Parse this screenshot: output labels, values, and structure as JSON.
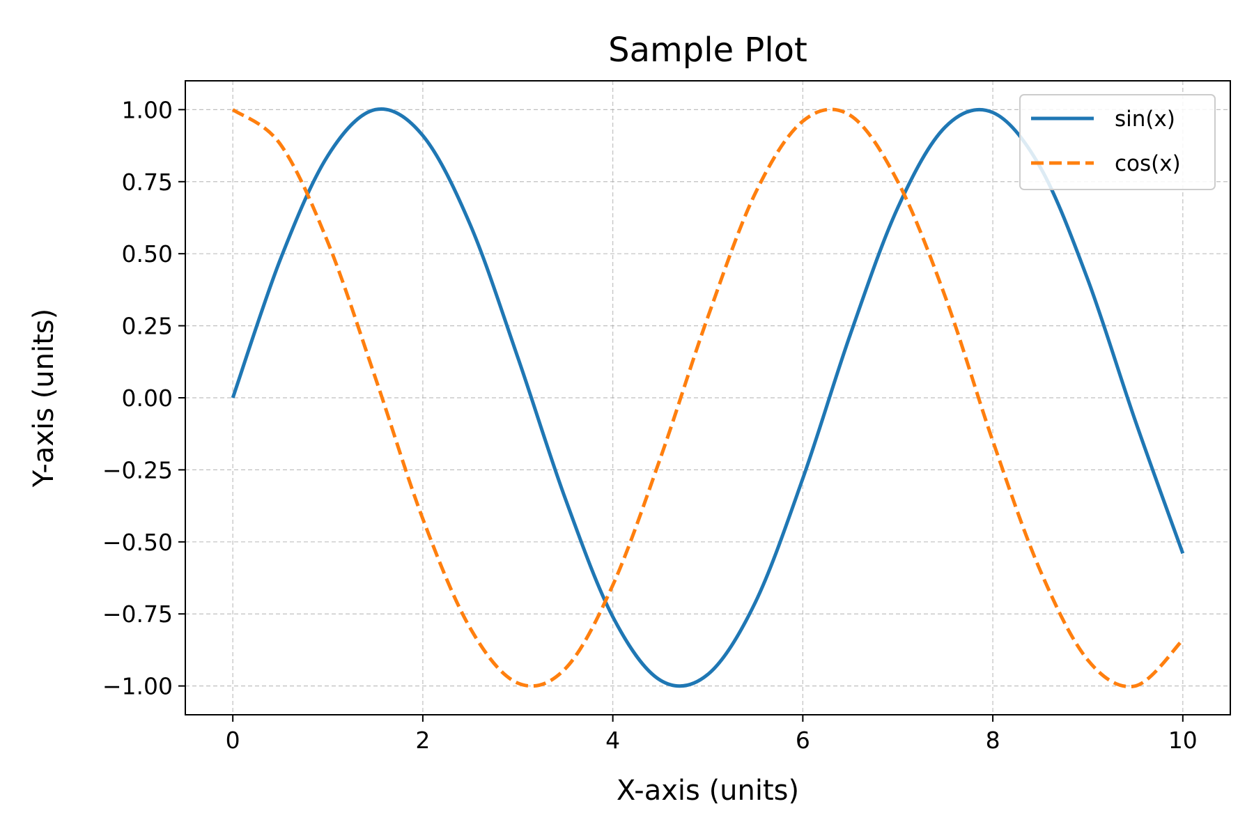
{
  "chart_data": {
    "type": "line",
    "title": "Sample Plot",
    "xlabel": "X-axis (units)",
    "ylabel": "Y-axis (units)",
    "xlim": [
      -0.5,
      10.5
    ],
    "ylim": [
      -1.1,
      1.1
    ],
    "xticks": [
      0,
      2,
      4,
      6,
      8,
      10
    ],
    "xtick_labels": [
      "0",
      "2",
      "4",
      "6",
      "8",
      "10"
    ],
    "yticks": [
      1.0,
      0.75,
      0.5,
      0.25,
      0.0,
      -0.25,
      -0.5,
      -0.75,
      -1.0
    ],
    "ytick_labels": [
      "1.00",
      "0.75",
      "0.50",
      "0.25",
      "0.00",
      "−0.25",
      "−0.50",
      "−0.75",
      "−1.00"
    ],
    "grid": true,
    "legend_position": "top-right",
    "series": [
      {
        "name": "sin(x)",
        "color": "#1f77b4",
        "linestyle": "solid",
        "x": [
          0,
          0.5,
          1,
          1.5,
          2,
          2.5,
          3,
          3.5,
          4,
          4.5,
          5,
          5.5,
          6,
          6.5,
          7,
          7.5,
          8,
          8.5,
          9,
          9.5,
          10
        ],
        "y": [
          0.0,
          0.48,
          0.84,
          1.0,
          0.91,
          0.6,
          0.14,
          -0.35,
          -0.76,
          -0.98,
          -0.96,
          -0.71,
          -0.28,
          0.22,
          0.66,
          0.94,
          0.99,
          0.8,
          0.41,
          -0.08,
          -0.54
        ]
      },
      {
        "name": "cos(x)",
        "color": "#ff7f0e",
        "linestyle": "dashed",
        "x": [
          0,
          0.5,
          1,
          1.5,
          2,
          2.5,
          3,
          3.5,
          4,
          4.5,
          5,
          5.5,
          6,
          6.5,
          7,
          7.5,
          8,
          8.5,
          9,
          9.5,
          10
        ],
        "y": [
          1.0,
          0.88,
          0.54,
          0.07,
          -0.42,
          -0.8,
          -0.99,
          -0.94,
          -0.65,
          -0.21,
          0.28,
          0.71,
          0.96,
          0.98,
          0.75,
          0.35,
          -0.15,
          -0.6,
          -0.91,
          -1.0,
          -0.84
        ]
      }
    ]
  }
}
